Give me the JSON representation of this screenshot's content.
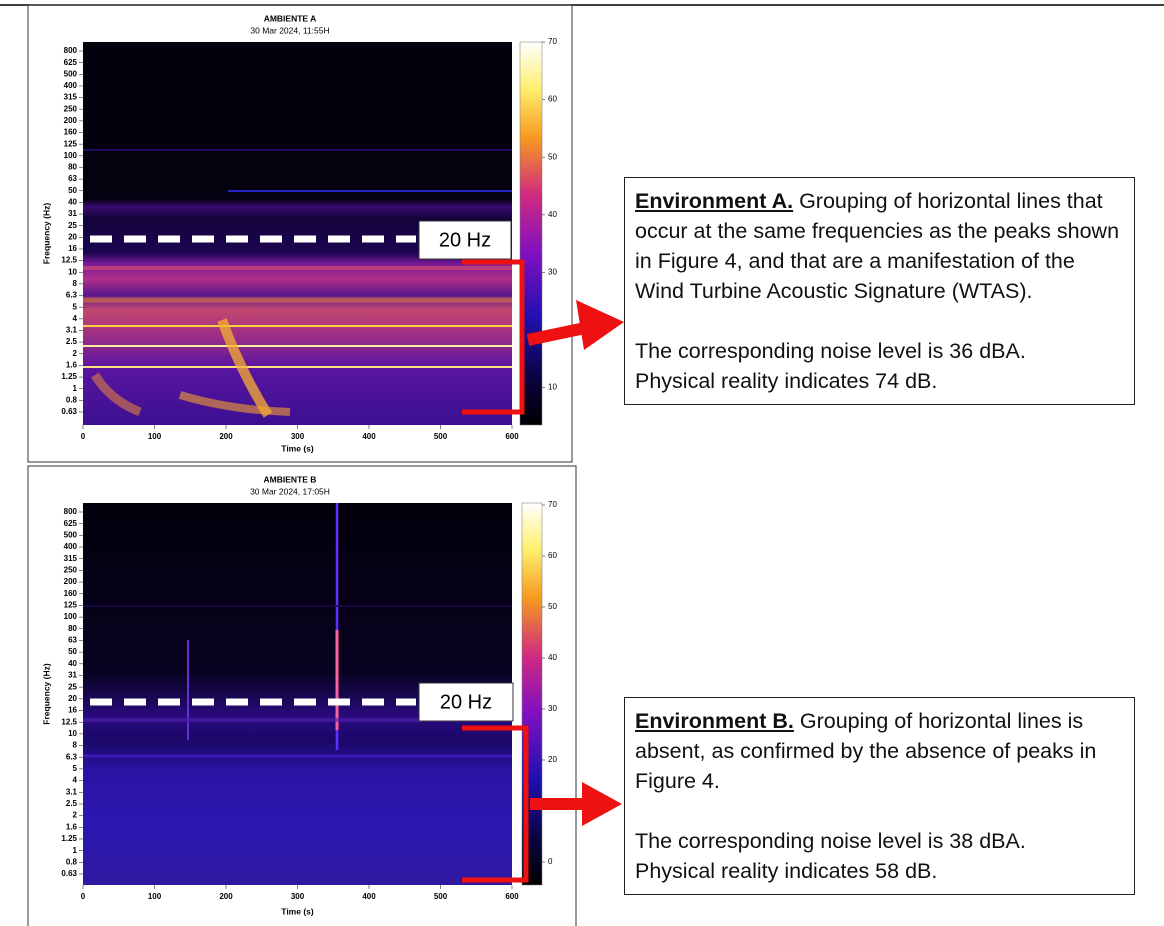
{
  "figures": [
    {
      "title": "AMBIENTE A",
      "subtitle": "30 Mar 2024, 11:55H",
      "y_label": "Frequency (Hz)",
      "x_label": "Time (s)",
      "y_ticks": [
        "800",
        "625",
        "500",
        "400",
        "315",
        "250",
        "200",
        "160",
        "125",
        "100",
        "80",
        "63",
        "50",
        "40",
        "31",
        "25",
        "20",
        "16",
        "12.5",
        "10",
        "8",
        "6.3",
        "5",
        "4",
        "3.1",
        "2.5",
        "2",
        "1.6",
        "1.25",
        "1",
        "0.8",
        "0.63"
      ],
      "x_ticks": [
        0,
        100,
        200,
        300,
        400,
        500,
        600
      ],
      "colorbar_ticks": [
        70,
        60,
        50,
        40,
        30,
        10
      ],
      "marker_label": "20 Hz"
    },
    {
      "title": "AMBIENTE B",
      "subtitle": "30 Mar 2024, 17:05H",
      "y_label": "Frequency (Hz)",
      "x_label": "Time (s)",
      "y_ticks": [
        "800",
        "625",
        "500",
        "400",
        "315",
        "250",
        "200",
        "160",
        "125",
        "100",
        "80",
        "63",
        "50",
        "40",
        "31",
        "25",
        "20",
        "16",
        "12.5",
        "10",
        "8",
        "6.3",
        "5",
        "4",
        "3.1",
        "2.5",
        "2",
        "1.6",
        "1.25",
        "1",
        "0.8",
        "0.63"
      ],
      "x_ticks": [
        0,
        100,
        200,
        300,
        400,
        500,
        600
      ],
      "colorbar_ticks": [
        70,
        60,
        50,
        40,
        30,
        20,
        0
      ],
      "marker_label": "20 Hz"
    }
  ],
  "notes": [
    {
      "heading": "Environment A.",
      "text": "Grouping of horizontal lines that occur at the same frequencies as the peaks shown in Figure 4, and that are a manifestation of the Wind Turbine Acoustic Signature (WTAS).",
      "level": "The corresponding noise level is 36 dBA.",
      "reality": "Physical reality indicates 74 dB."
    },
    {
      "heading": "Environment B.",
      "text": "Grouping of horizontal lines is absent, as confirmed by the absence of peaks in Figure 4.",
      "level": "The corresponding noise level is 38 dBA.",
      "reality": "Physical reality indicates 58 dB."
    }
  ]
}
